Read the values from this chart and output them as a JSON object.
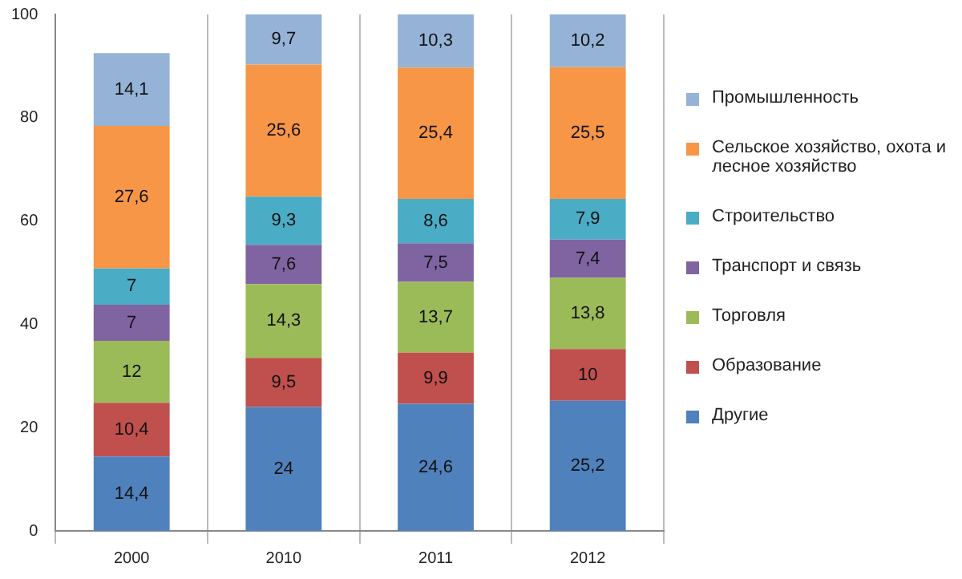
{
  "chart_data": {
    "type": "bar",
    "stacked": true,
    "categories": [
      "2000",
      "2010",
      "2011",
      "2012"
    ],
    "ylim": [
      0,
      100
    ],
    "yticks": [
      0,
      20,
      40,
      60,
      80,
      100
    ],
    "grid": "x",
    "legend": "right",
    "series": [
      {
        "name": "Другие",
        "color": "#4f81bd",
        "values": [
          14.4,
          24,
          24.6,
          25.2
        ],
        "value_labels": [
          "14,4",
          "24",
          "24,6",
          "25,2"
        ]
      },
      {
        "name": "Образование",
        "color": "#c0504d",
        "values": [
          10.4,
          9.5,
          9.9,
          10
        ],
        "value_labels": [
          "10,4",
          "9,5",
          "9,9",
          "10"
        ]
      },
      {
        "name": "Торговля",
        "color": "#9bbb59",
        "values": [
          12,
          14.3,
          13.7,
          13.8
        ],
        "value_labels": [
          "12",
          "14,3",
          "13,7",
          "13,8"
        ]
      },
      {
        "name": "Транспорт и связь",
        "color": "#8064a2",
        "values": [
          7,
          7.6,
          7.5,
          7.4
        ],
        "value_labels": [
          "7",
          "7,6",
          "7,5",
          "7,4"
        ]
      },
      {
        "name": "Строительство",
        "color": "#4bacc6",
        "values": [
          7,
          9.3,
          8.6,
          7.9
        ],
        "value_labels": [
          "7",
          "9,3",
          "8,6",
          "7,9"
        ]
      },
      {
        "name": "Сельское хозяйство, охота и лесное хозяйство",
        "color": "#f79646",
        "values": [
          27.6,
          25.6,
          25.4,
          25.5
        ],
        "value_labels": [
          "27,6",
          "25,6",
          "25,4",
          "25,5"
        ]
      },
      {
        "name": "Промышленность",
        "color": "#95b3d7",
        "values": [
          14.1,
          9.7,
          10.3,
          10.2
        ],
        "value_labels": [
          "14,1",
          "9,7",
          "10,3",
          "10,2"
        ]
      }
    ]
  }
}
